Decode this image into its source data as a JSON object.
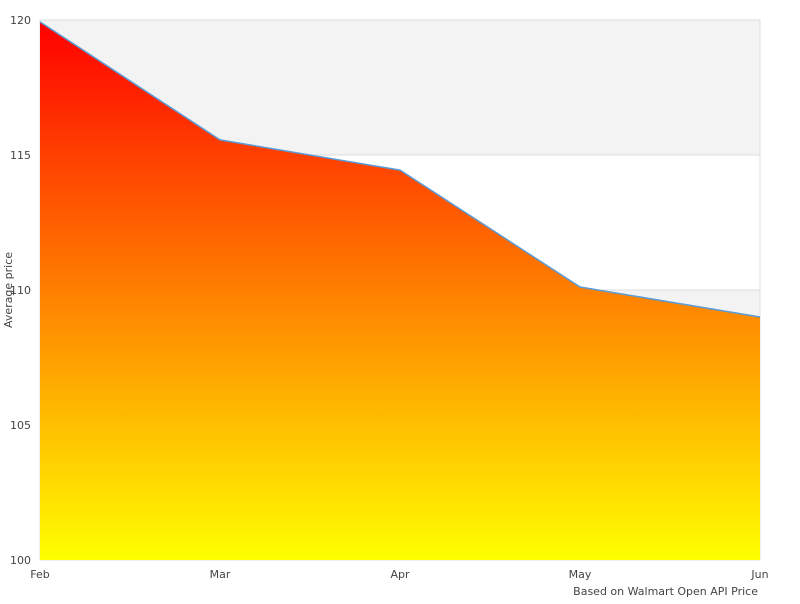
{
  "chart_data": {
    "type": "area",
    "categories": [
      "Feb",
      "Mar",
      "Apr",
      "May",
      "Jun"
    ],
    "values": [
      119.93,
      115.56,
      114.44,
      110.11,
      109.0
    ],
    "ylabel": "Average price",
    "xlabel": "",
    "credit": "Based on Walmart Open API Price",
    "ylim": [
      100,
      120
    ],
    "yticks": [
      100,
      105,
      110,
      115,
      120
    ],
    "grid": true,
    "alternating_bands": true,
    "colors": {
      "fill_top": "#ff0000",
      "fill_bottom": "#ffff00",
      "line": "#5b9bd5",
      "band": "#f3f3f3",
      "grid": "#dddddd"
    }
  }
}
